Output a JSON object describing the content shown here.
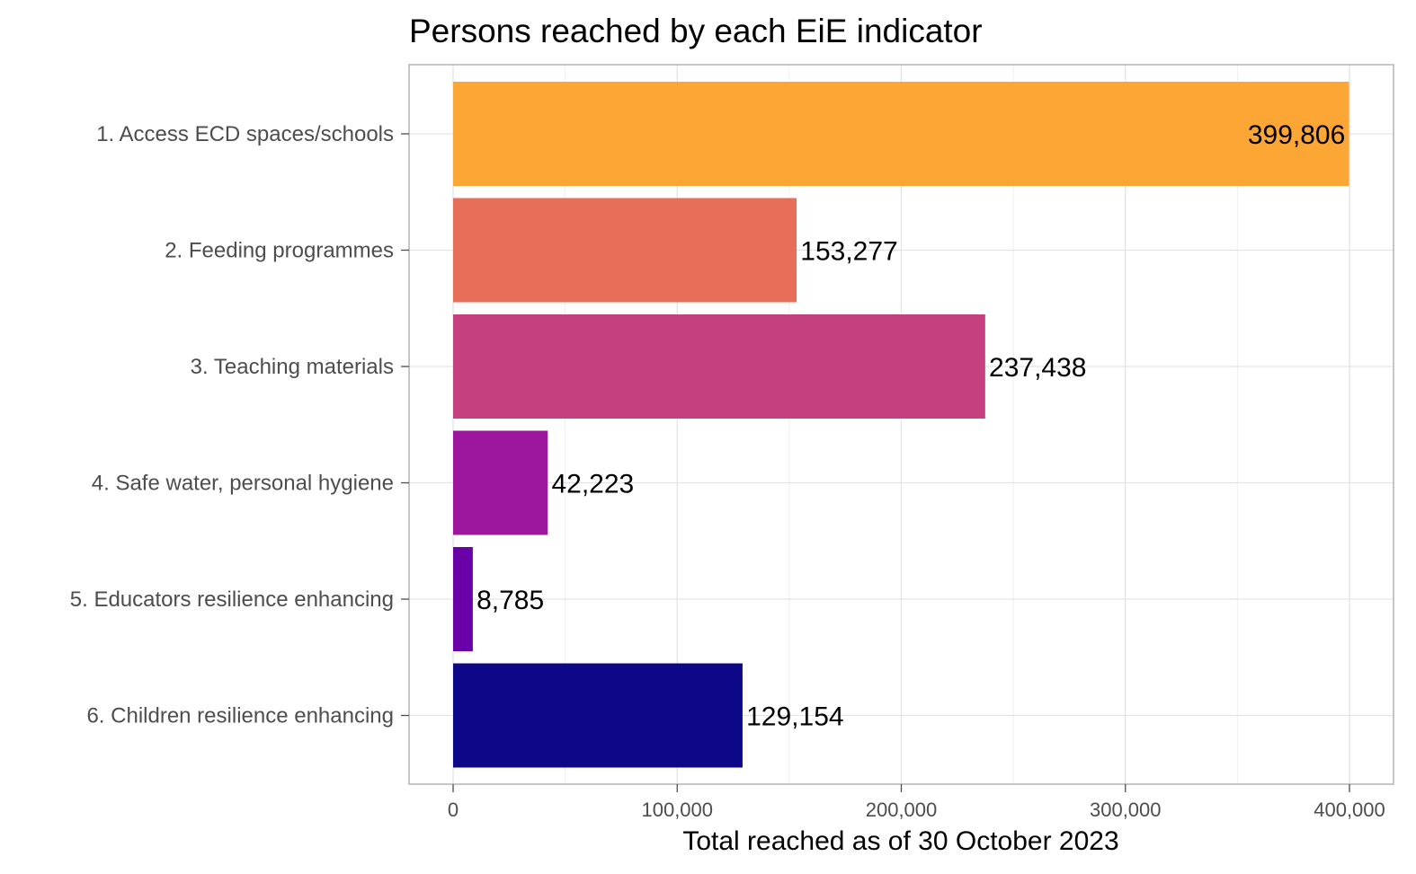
{
  "chart_data": {
    "type": "bar",
    "orientation": "horizontal",
    "title": "Persons reached by each EiE indicator",
    "xlabel": "Total reached as of 30 October 2023",
    "ylabel": "",
    "xlim": [
      0,
      400000
    ],
    "x_ticks": [
      0,
      100000,
      200000,
      300000,
      400000
    ],
    "x_tick_labels": [
      "0",
      "100,000",
      "200,000",
      "300,000",
      "400,000"
    ],
    "grid": true,
    "legend": "none",
    "categories": [
      "1. Access ECD spaces/schools",
      "2. Feeding programmes",
      "3. Teaching materials",
      "4. Safe water, personal hygiene",
      "5. Educators resilience enhancing",
      "6. Children resilience enhancing"
    ],
    "values": [
      399806,
      153277,
      237438,
      42223,
      8785,
      129154
    ],
    "value_labels": [
      "399,806",
      "153,277",
      "237,438",
      "42,223",
      "8,785",
      "129,154"
    ],
    "colors": [
      "#FCA636",
      "#E76F5A",
      "#C5407E",
      "#9C179E",
      "#6A00A8",
      "#0D0887"
    ]
  }
}
